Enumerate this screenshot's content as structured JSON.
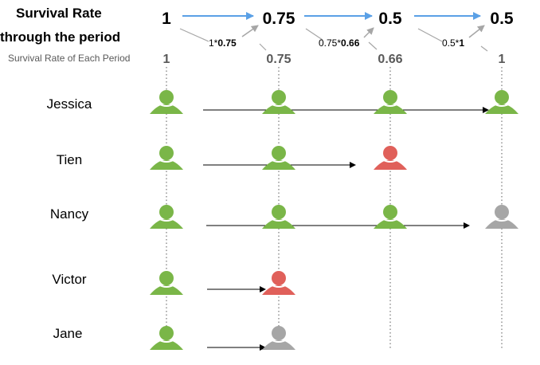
{
  "title_line1": "Survival Rate",
  "title_line2": "through the period",
  "subtitle": "Survival Rate of Each Period",
  "cumulative_rates": [
    "1",
    "0.75",
    "0.5",
    "0.5"
  ],
  "period_rates": [
    "1",
    "0.75",
    "0.66",
    "1"
  ],
  "formulas": [
    {
      "base": "1*",
      "factor": "0.75"
    },
    {
      "base": "0.75*",
      "factor": "0.66"
    },
    {
      "base": "0.5*",
      "factor": "1"
    }
  ],
  "people": [
    {
      "name": "Jessica",
      "states": [
        "survived",
        "survived",
        "survived",
        "survived"
      ],
      "arrow_to": 3
    },
    {
      "name": "Tien",
      "states": [
        "survived",
        "survived",
        "died",
        null
      ],
      "arrow_to": 2
    },
    {
      "name": "Nancy",
      "states": [
        "survived",
        "survived",
        "survived",
        "censored"
      ],
      "arrow_to": 3
    },
    {
      "name": "Victor",
      "states": [
        "survived",
        "died",
        null,
        null
      ],
      "arrow_to": 1
    },
    {
      "name": "Jane",
      "states": [
        "survived",
        "censored",
        null,
        null
      ],
      "arrow_to": 1
    }
  ],
  "colors": {
    "survived": "#7ab648",
    "died": "#e0605a",
    "censored": "#a6a6a6",
    "arrow_blue": "#5aa0e6",
    "arrow_gray": "#a6a6a6",
    "period_rate_text": "#595959",
    "dotted_line": "#7f7f7f"
  },
  "icons": {
    "survived": "person-icon",
    "died": "person-icon",
    "censored": "person-icon"
  }
}
